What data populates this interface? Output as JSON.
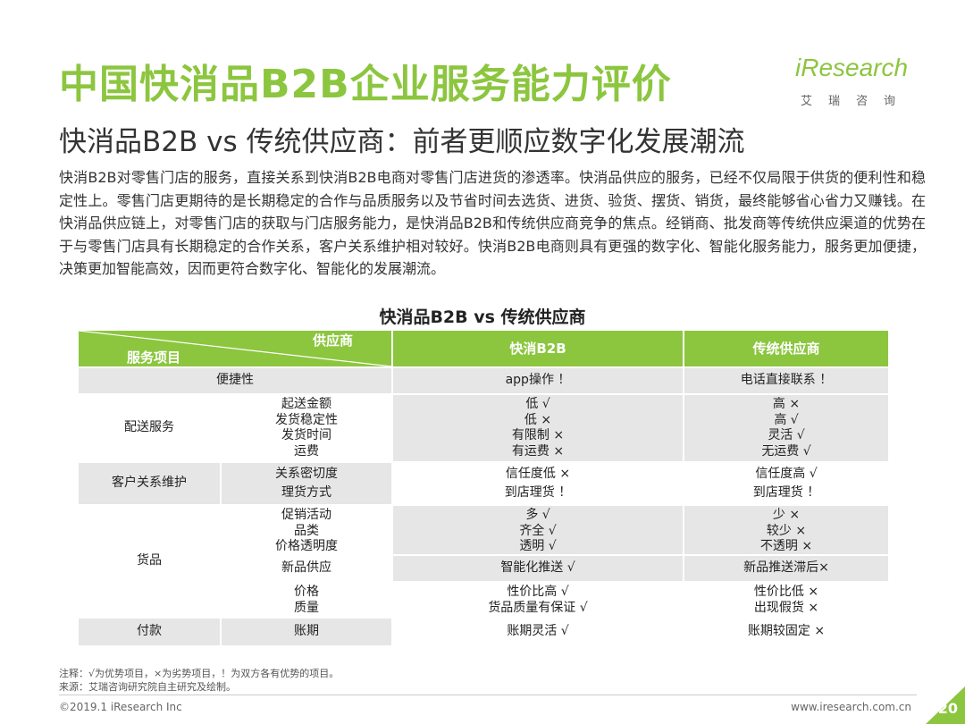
{
  "page": {
    "title": "中国快消品B2B企业服务能力评价",
    "subtitle": "快消品B2B vs 传统供应商：前者更顺应数字化发展潮流",
    "intro": "快消B2B对零售门店的服务，直接关系到快消B2B电商对零售门店进货的渗透率。快消品供应的服务，已经不仅局限于供货的便利性和稳定性上。零售门店更期待的是长期稳定的合作与品质服务以及节省时间去选货、进货、验货、摆货、销货，最终能够省心省力又赚钱。在快消品供应链上，对零售门店的获取与门店服务能力，是快消品B2B和传统供应商竞争的焦点。经销商、批发商等传统供应渠道的优势在于与零售门店具有长期稳定的合作关系，客户关系维护相对较好。快消B2B电商则具有更强的数字化、智能化服务能力，服务更加便捷，决策更加智能高效，因而更符合数字化、智能化的发展潮流。"
  },
  "logo": {
    "word": "iResearch",
    "sub": "艾瑞咨询"
  },
  "table": {
    "title": "快消品B2B vs 传统供应商",
    "header": {
      "diag_top": "供应商",
      "diag_bottom": "服务项目",
      "col_b2b": "快消B2B",
      "col_trad": "传统供应商"
    },
    "rows": {
      "convenience": {
        "cat": "便捷性",
        "b2b": "app操作 ！",
        "trad": "电话直接联系 ！"
      },
      "delivery": {
        "cat": "配送服务",
        "items": [
          "起送金额",
          "发货稳定性",
          "发货时间",
          "运费"
        ],
        "b2b": [
          "低 √",
          "低 ×",
          "有限制 ×",
          "有运费 ×"
        ],
        "trad": [
          "高 ×",
          "高 √",
          "灵活 √",
          "无运费 √"
        ]
      },
      "crm": {
        "cat": "客户关系维护",
        "items": [
          "关系密切度",
          "理货方式"
        ],
        "b2b": [
          "信任度低 ×",
          "到店理货 ！"
        ],
        "trad": [
          "信任度高 √",
          "到店理货 ！"
        ]
      },
      "goods": {
        "cat": "货品",
        "items_a": [
          "促销活动",
          "品类",
          "价格透明度"
        ],
        "b2b_a": [
          "多 √",
          "齐全 √",
          "透明 √"
        ],
        "trad_a": [
          "少 ×",
          "较少 ×",
          "不透明 ×"
        ],
        "item_b": "新品供应",
        "b2b_b": "智能化推送 √",
        "trad_b": "新品推送滞后×",
        "items_c": [
          "价格",
          "质量"
        ],
        "b2b_c": [
          "性价比高 √",
          "货品质量有保证 √"
        ],
        "trad_c": [
          "性价比低 ×",
          "出现假货 ×"
        ]
      },
      "payment": {
        "cat": "付款",
        "item": "账期",
        "b2b": "账期灵活 √",
        "trad": "账期较固定 ×"
      }
    }
  },
  "notes": {
    "note": "注释：√为优势项目，×为劣势项目，！为双方各有优势的项目。",
    "source": "来源：艾瑞咨询研究院自主研究及绘制。"
  },
  "footer": {
    "copyright": "©2019.1 iResearch Inc",
    "site": "www.iresearch.com.cn",
    "page_number": "20"
  },
  "colors": {
    "accent": "#8cc63f",
    "row_gray": "#e6e6e6"
  }
}
